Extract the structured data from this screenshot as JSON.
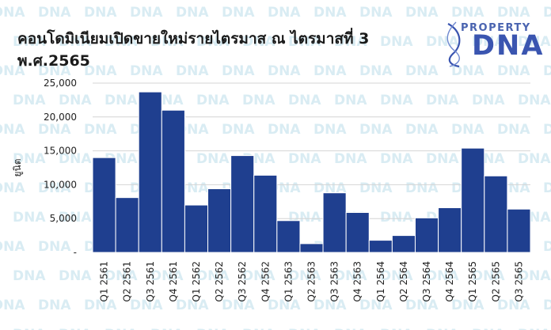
{
  "chart_data": {
    "type": "bar",
    "title_line1": "คอนโดมิเนียมเปิดขายใหม่รายไตรมาส ณ ไตรมาสที่ 3",
    "title_line2": "พ.ศ.2565",
    "ylabel": "ยูนิต",
    "ylim": [
      0,
      25000
    ],
    "yticks": [
      0,
      5000,
      10000,
      15000,
      20000,
      25000
    ],
    "ytick_labels": [
      "-",
      "5,000",
      "10,000",
      "15,000",
      "20,000",
      "25,000"
    ],
    "grid": true,
    "bar_color": "#1f3f8f",
    "categories": [
      "Q1 2561",
      "Q2 2561",
      "Q3 2561",
      "Q4 2561",
      "Q1 2562",
      "Q2 2562",
      "Q3 2562",
      "Q4 2562",
      "Q1 2563",
      "Q2 2563",
      "Q3 2563",
      "Q4 2563",
      "Q1 2564",
      "Q2 2564",
      "Q3 2564",
      "Q4 2564",
      "Q1 2565",
      "Q2 2565",
      "Q3 2565"
    ],
    "values": [
      14000,
      8100,
      23700,
      21000,
      7000,
      9400,
      14300,
      11400,
      4700,
      1300,
      8800,
      5900,
      1800,
      2500,
      5100,
      6600,
      15400,
      11300,
      6400
    ]
  },
  "logo": {
    "top": "PROPERTY",
    "main": "DNA"
  },
  "watermark_text": "DNA",
  "colors": {
    "watermark": "#d9ecf3",
    "logo": "#3a55b0",
    "grid": "#d4d4d4"
  }
}
